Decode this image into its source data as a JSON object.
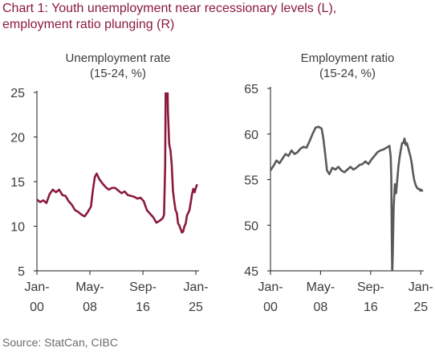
{
  "title": {
    "line1": "Chart 1: Youth unemployment near recessionary levels (L),",
    "line2": "employment ratio plunging (R)"
  },
  "source": "Source: StatCan, CIBC",
  "colors": {
    "title": "#8b1a3a",
    "left_series": "#8b1a3a",
    "right_series": "#5a5a5a",
    "axis": "#1e1e1e"
  },
  "chart_data": [
    {
      "type": "line",
      "title": "Unemployment rate",
      "subtitle": "(15-24, %)",
      "xlabel": "",
      "ylabel": "",
      "ylim": [
        5,
        25
      ],
      "yticks": [
        5,
        10,
        15,
        20,
        25
      ],
      "xlim": [
        2000.0,
        2025.5
      ],
      "xticks": [
        {
          "x": 2000.0,
          "line1": "Jan-",
          "line2": "00"
        },
        {
          "x": 2008.33,
          "line1": "May-",
          "line2": "08"
        },
        {
          "x": 2016.67,
          "line1": "Sep-",
          "line2": "16"
        },
        {
          "x": 2025.0,
          "line1": "Jan-",
          "line2": "25"
        }
      ],
      "grid": false,
      "series": [
        {
          "color": "#8b1a3a",
          "points": [
            [
              2000.0,
              13.0
            ],
            [
              2000.5,
              12.7
            ],
            [
              2001.0,
              12.9
            ],
            [
              2001.5,
              12.6
            ],
            [
              2002.0,
              13.6
            ],
            [
              2002.5,
              14.1
            ],
            [
              2003.0,
              13.8
            ],
            [
              2003.5,
              14.1
            ],
            [
              2004.0,
              13.5
            ],
            [
              2004.5,
              13.4
            ],
            [
              2005.0,
              12.8
            ],
            [
              2005.5,
              12.4
            ],
            [
              2006.0,
              11.8
            ],
            [
              2006.5,
              11.6
            ],
            [
              2007.0,
              11.3
            ],
            [
              2007.5,
              11.1
            ],
            [
              2008.0,
              11.6
            ],
            [
              2008.5,
              12.2
            ],
            [
              2008.8,
              14.0
            ],
            [
              2009.1,
              15.5
            ],
            [
              2009.4,
              15.9
            ],
            [
              2009.8,
              15.3
            ],
            [
              2010.3,
              14.8
            ],
            [
              2010.8,
              14.4
            ],
            [
              2011.3,
              14.1
            ],
            [
              2011.8,
              14.3
            ],
            [
              2012.3,
              14.3
            ],
            [
              2012.8,
              14.0
            ],
            [
              2013.3,
              13.7
            ],
            [
              2013.8,
              13.9
            ],
            [
              2014.3,
              13.5
            ],
            [
              2014.8,
              13.4
            ],
            [
              2015.3,
              13.3
            ],
            [
              2015.8,
              13.1
            ],
            [
              2016.3,
              13.2
            ],
            [
              2016.8,
              12.8
            ],
            [
              2017.3,
              11.8
            ],
            [
              2017.8,
              11.4
            ],
            [
              2018.3,
              11.0
            ],
            [
              2018.8,
              10.4
            ],
            [
              2019.3,
              10.6
            ],
            [
              2019.8,
              10.9
            ],
            [
              2020.0,
              11.3
            ],
            [
              2020.17,
              16.8
            ],
            [
              2020.25,
              25.0
            ],
            [
              2020.35,
              29.0
            ],
            [
              2020.5,
              27.5
            ],
            [
              2020.6,
              23.0
            ],
            [
              2020.8,
              19.2
            ],
            [
              2021.0,
              18.5
            ],
            [
              2021.2,
              17.0
            ],
            [
              2021.4,
              14.0
            ],
            [
              2021.6,
              12.8
            ],
            [
              2021.8,
              11.8
            ],
            [
              2022.0,
              11.5
            ],
            [
              2022.2,
              10.3
            ],
            [
              2022.4,
              10.1
            ],
            [
              2022.6,
              9.7
            ],
            [
              2022.8,
              9.3
            ],
            [
              2023.0,
              9.4
            ],
            [
              2023.2,
              10.0
            ],
            [
              2023.4,
              10.3
            ],
            [
              2023.6,
              11.2
            ],
            [
              2023.8,
              11.5
            ],
            [
              2024.0,
              11.8
            ],
            [
              2024.2,
              12.7
            ],
            [
              2024.4,
              13.6
            ],
            [
              2024.6,
              14.2
            ],
            [
              2024.8,
              13.8
            ],
            [
              2025.0,
              14.3
            ],
            [
              2025.2,
              14.7
            ]
          ]
        }
      ]
    },
    {
      "type": "line",
      "title": "Employment ratio",
      "subtitle": "(15-24, %)",
      "xlabel": "",
      "ylabel": "",
      "ylim": [
        45,
        65
      ],
      "yticks": [
        45,
        50,
        55,
        60,
        65
      ],
      "xlim": [
        2000.0,
        2025.5
      ],
      "xticks": [
        {
          "x": 2000.0,
          "line1": "Jan-",
          "line2": "00"
        },
        {
          "x": 2008.33,
          "line1": "May-",
          "line2": "08"
        },
        {
          "x": 2016.67,
          "line1": "Sep-",
          "line2": "16"
        },
        {
          "x": 2025.0,
          "line1": "Jan-",
          "line2": "25"
        }
      ],
      "grid": false,
      "series": [
        {
          "color": "#5a5a5a",
          "points": [
            [
              2000.0,
              56.0
            ],
            [
              2000.5,
              56.5
            ],
            [
              2001.0,
              57.1
            ],
            [
              2001.5,
              56.8
            ],
            [
              2002.0,
              57.3
            ],
            [
              2002.5,
              57.8
            ],
            [
              2003.0,
              57.6
            ],
            [
              2003.5,
              58.2
            ],
            [
              2004.0,
              57.8
            ],
            [
              2004.5,
              58.0
            ],
            [
              2005.0,
              58.4
            ],
            [
              2005.5,
              58.6
            ],
            [
              2006.0,
              58.5
            ],
            [
              2006.5,
              59.2
            ],
            [
              2007.0,
              60.0
            ],
            [
              2007.5,
              60.7
            ],
            [
              2008.0,
              60.8
            ],
            [
              2008.5,
              60.6
            ],
            [
              2008.8,
              59.5
            ],
            [
              2009.1,
              57.8
            ],
            [
              2009.4,
              56.0
            ],
            [
              2009.8,
              55.6
            ],
            [
              2010.3,
              56.3
            ],
            [
              2010.8,
              56.1
            ],
            [
              2011.3,
              56.4
            ],
            [
              2011.8,
              56.0
            ],
            [
              2012.3,
              55.8
            ],
            [
              2012.8,
              56.1
            ],
            [
              2013.3,
              56.4
            ],
            [
              2013.8,
              56.1
            ],
            [
              2014.3,
              56.3
            ],
            [
              2014.8,
              56.6
            ],
            [
              2015.3,
              56.7
            ],
            [
              2015.8,
              57.0
            ],
            [
              2016.3,
              56.7
            ],
            [
              2016.8,
              57.2
            ],
            [
              2017.3,
              57.6
            ],
            [
              2017.8,
              58.0
            ],
            [
              2018.3,
              58.2
            ],
            [
              2018.8,
              58.3
            ],
            [
              2019.3,
              58.5
            ],
            [
              2019.8,
              58.7
            ],
            [
              2020.0,
              57.5
            ],
            [
              2020.1,
              55.0
            ],
            [
              2020.17,
              49.0
            ],
            [
              2020.25,
              44.5
            ],
            [
              2020.35,
              47.0
            ],
            [
              2020.5,
              52.0
            ],
            [
              2020.7,
              54.5
            ],
            [
              2020.9,
              53.5
            ],
            [
              2021.1,
              55.0
            ],
            [
              2021.3,
              56.5
            ],
            [
              2021.5,
              57.5
            ],
            [
              2021.7,
              58.3
            ],
            [
              2021.9,
              59.0
            ],
            [
              2022.1,
              59.0
            ],
            [
              2022.3,
              59.5
            ],
            [
              2022.5,
              58.8
            ],
            [
              2022.7,
              59.0
            ],
            [
              2022.9,
              58.5
            ],
            [
              2023.1,
              58.0
            ],
            [
              2023.3,
              57.5
            ],
            [
              2023.5,
              56.8
            ],
            [
              2023.7,
              55.8
            ],
            [
              2023.9,
              55.0
            ],
            [
              2024.1,
              54.5
            ],
            [
              2024.3,
              54.2
            ],
            [
              2024.5,
              54.0
            ],
            [
              2024.7,
              54.0
            ],
            [
              2024.9,
              53.8
            ],
            [
              2025.1,
              53.9
            ],
            [
              2025.3,
              53.7
            ]
          ]
        }
      ]
    }
  ]
}
